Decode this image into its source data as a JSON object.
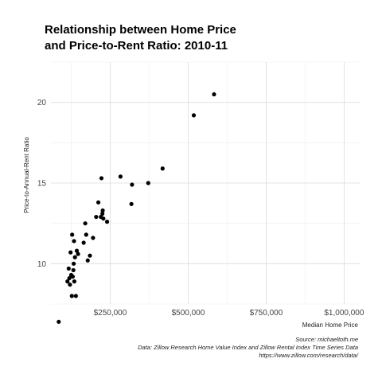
{
  "chart_data": {
    "type": "scatter",
    "title_lines": [
      "Relationship between Home Price",
      "and Price-to-Rent Ratio: 2010-11"
    ],
    "xlabel": "Median Home Price",
    "ylabel": "Price-to-Annual-Rent Ratio",
    "xlim": [
      60000,
      1050000
    ],
    "ylim": [
      7.5,
      22.5
    ],
    "x_ticks": [
      {
        "value": 250000,
        "label": "$250,000"
      },
      {
        "value": 500000,
        "label": "$500,000"
      },
      {
        "value": 750000,
        "label": "$750,000"
      },
      {
        "value": 1000000,
        "label": "$1,000,000"
      }
    ],
    "y_ticks": [
      {
        "value": 10,
        "label": "10"
      },
      {
        "value": 15,
        "label": "15"
      },
      {
        "value": 20,
        "label": "20"
      }
    ],
    "grid": true,
    "points": [
      [
        85000,
        6.4
      ],
      [
        113000,
        8.9
      ],
      [
        117000,
        9.7
      ],
      [
        119000,
        9.1
      ],
      [
        121000,
        8.7
      ],
      [
        123000,
        10.7
      ],
      [
        125000,
        9.3
      ],
      [
        127000,
        8.0
      ],
      [
        128000,
        11.8
      ],
      [
        130000,
        9.2
      ],
      [
        132000,
        9.6
      ],
      [
        133000,
        10.0
      ],
      [
        134000,
        11.4
      ],
      [
        135000,
        8.9
      ],
      [
        137000,
        10.4
      ],
      [
        140000,
        8.0
      ],
      [
        143000,
        10.8
      ],
      [
        147000,
        10.6
      ],
      [
        165000,
        11.3
      ],
      [
        170000,
        12.5
      ],
      [
        173000,
        11.8
      ],
      [
        178000,
        10.2
      ],
      [
        185000,
        10.5
      ],
      [
        195000,
        11.6
      ],
      [
        205000,
        12.9
      ],
      [
        212000,
        13.8
      ],
      [
        220000,
        12.9
      ],
      [
        222000,
        15.3
      ],
      [
        225000,
        13.1
      ],
      [
        226000,
        13.3
      ],
      [
        228000,
        12.8
      ],
      [
        240000,
        12.6
      ],
      [
        283000,
        15.4
      ],
      [
        318000,
        13.7
      ],
      [
        320000,
        14.9
      ],
      [
        372000,
        15.0
      ],
      [
        418000,
        15.9
      ],
      [
        518000,
        19.2
      ],
      [
        583000,
        20.5
      ]
    ]
  },
  "caption": {
    "line1": "Source: michaeltoth.me",
    "line2": "Data: Zillow Research Home Value Index and Zillow Rental Index Time Series Data",
    "line3": "https://www.zillow.com/research/data/"
  }
}
